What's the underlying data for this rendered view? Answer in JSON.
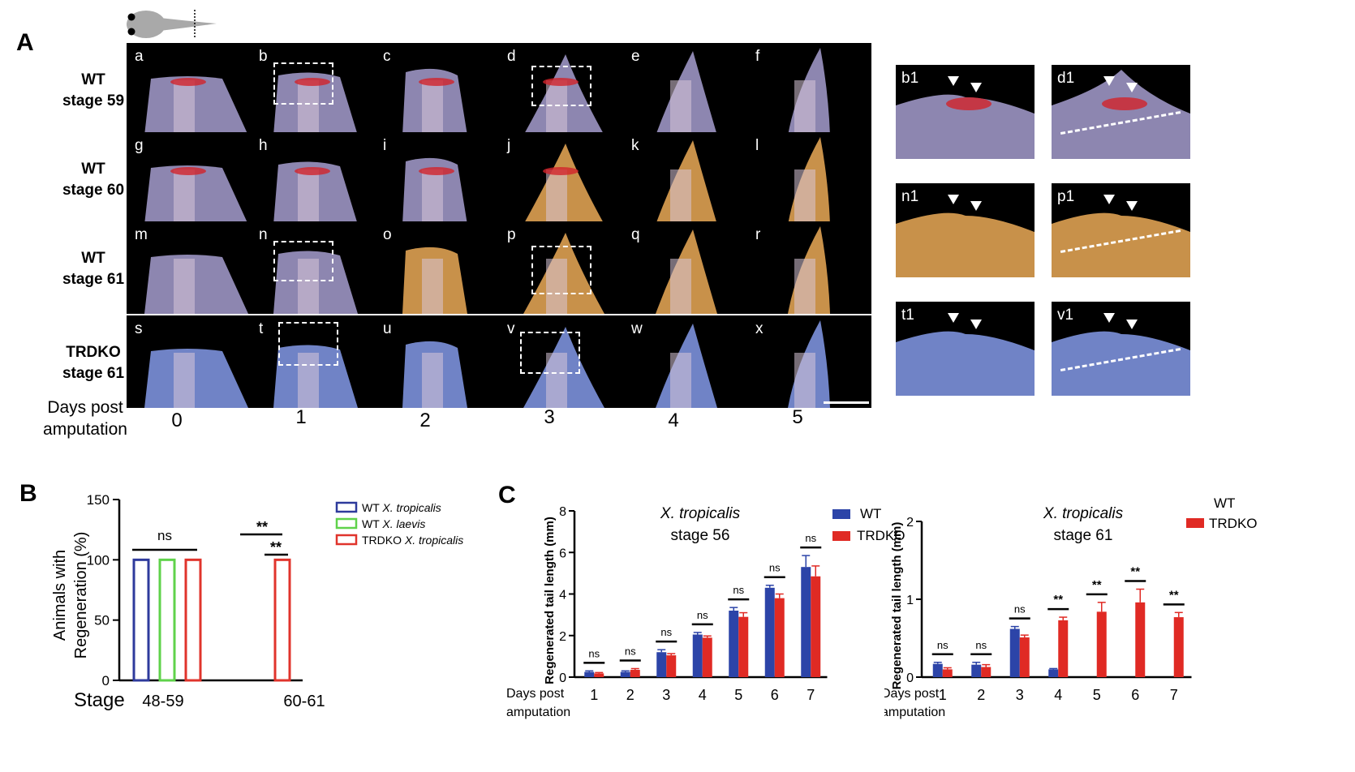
{
  "figure": {
    "panel_A": {
      "letter": "A",
      "rows": [
        {
          "line1": "WT",
          "line2": "stage 59",
          "tiles": [
            "a",
            "b",
            "c",
            "d",
            "e",
            "f"
          ]
        },
        {
          "line1": "WT",
          "line2": "stage 60",
          "tiles": [
            "g",
            "h",
            "i",
            "j",
            "k",
            "l"
          ]
        },
        {
          "line1": "WT",
          "line2": "stage 61",
          "tiles": [
            "m",
            "n",
            "o",
            "p",
            "q",
            "r"
          ]
        },
        {
          "line1": "TRDKO",
          "line2": "stage 61",
          "tiles": [
            "s",
            "t",
            "u",
            "v",
            "w",
            "x"
          ]
        }
      ],
      "days_label_1": "Days post",
      "days_label_2": "amputation",
      "days": [
        "0",
        "1",
        "2",
        "3",
        "4",
        "5"
      ],
      "zooms": [
        "b1",
        "d1",
        "n1",
        "p1",
        "t1",
        "v1"
      ]
    },
    "panel_B": {
      "letter": "B",
      "chart_data": {
        "type": "bar",
        "xlabel": "Stage",
        "ylabel_1": "Animals with",
        "ylabel_2": "Regeneration (%)",
        "ylim": [
          0,
          150
        ],
        "yticks": [
          "0",
          "50",
          "100",
          "150"
        ],
        "categories": [
          "48-59",
          "60-61"
        ],
        "series": [
          {
            "name": "WT X. tropicalis",
            "name_a": "WT ",
            "name_b": "X. tropicalis",
            "color": "#2e3a9c",
            "values": [
              100,
              0
            ]
          },
          {
            "name": "WT X. laevis",
            "name_a": "WT ",
            "name_b": "X. laevis",
            "color": "#5fd24a",
            "values": [
              100,
              0
            ]
          },
          {
            "name": "TRDKO X. tropicalis",
            "name_a": "TRDKO ",
            "name_b": "X. tropicalis",
            "color": "#e0342c",
            "values": [
              100,
              100
            ]
          }
        ],
        "annotations": [
          "ns",
          "**",
          "**"
        ]
      }
    },
    "panel_C": {
      "letter": "C",
      "charts": [
        {
          "type": "bar",
          "title_1": "X. tropicalis",
          "title_2": "stage 56",
          "ylabel": "Regenerated tail length (mm)",
          "xlabel_1": "Days post",
          "xlabel_2": "amputation",
          "ylim": [
            0,
            8
          ],
          "yticks": [
            "0",
            "2",
            "4",
            "6",
            "8"
          ],
          "categories": [
            "1",
            "2",
            "3",
            "4",
            "5",
            "6",
            "7"
          ],
          "series": [
            {
              "name": "WT",
              "color": "#2c44a8",
              "values": [
                0.25,
                0.25,
                1.2,
                2.05,
                3.2,
                4.3,
                5.3
              ],
              "err": [
                0.05,
                0.05,
                0.12,
                0.1,
                0.15,
                0.12,
                0.55
              ]
            },
            {
              "name": "TRDKO",
              "color": "#e02a24",
              "values": [
                0.18,
                0.35,
                1.05,
                1.9,
                2.9,
                3.8,
                4.85
              ],
              "err": [
                0.04,
                0.06,
                0.08,
                0.08,
                0.2,
                0.2,
                0.5
              ]
            }
          ],
          "annotations": [
            "ns",
            "ns",
            "ns",
            "ns",
            "ns",
            "ns",
            "ns"
          ]
        },
        {
          "type": "bar",
          "title_1": "X. tropicalis",
          "title_2": "stage 61",
          "ylabel": "Regenerated tail length (mm)",
          "xlabel_1": "Days post",
          "xlabel_2": "amputation",
          "ylim": [
            0,
            2
          ],
          "yticks": [
            "0",
            "1",
            "2"
          ],
          "categories": [
            "1",
            "2",
            "3",
            "4",
            "5",
            "6",
            "7"
          ],
          "series": [
            {
              "name": "WT",
              "color": "#2c44a8",
              "values": [
                0.17,
                0.16,
                0.62,
                0.1,
                0,
                0,
                0
              ],
              "err": [
                0.02,
                0.03,
                0.03,
                0.01,
                0,
                0,
                0
              ]
            },
            {
              "name": "TRDKO",
              "color": "#e02a24",
              "values": [
                0.1,
                0.13,
                0.51,
                0.73,
                0.84,
                0.96,
                0.77
              ],
              "err": [
                0.02,
                0.03,
                0.03,
                0.04,
                0.12,
                0.17,
                0.06
              ]
            }
          ],
          "annotations": [
            "ns",
            "ns",
            "ns",
            "**",
            "**",
            "**",
            "**"
          ]
        }
      ]
    }
  },
  "colors": {
    "tile_bg": "#000000",
    "tissue_wt": "#8d86b0",
    "tissue_orange": "#c8914a",
    "tissue_ko": "#7083c6",
    "blood": "#d2232a"
  }
}
